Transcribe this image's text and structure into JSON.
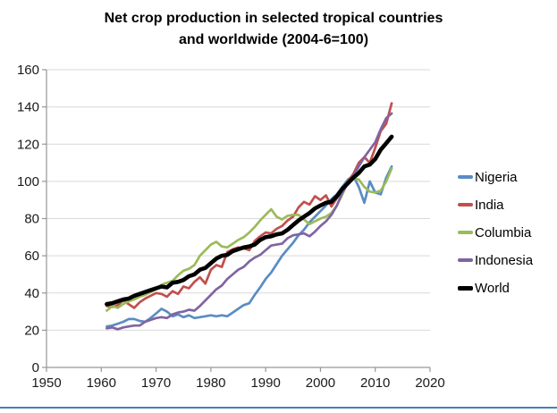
{
  "chart_data": {
    "type": "line",
    "title": "Net crop production in selected tropical countries and worldwide (2004-6=100)",
    "title_line1": "Net crop production in selected tropical countries",
    "title_line2": "and worldwide (2004-6=100)",
    "xlabel": "",
    "ylabel": "",
    "xlim": [
      1950,
      2020
    ],
    "ylim": [
      0,
      160
    ],
    "x_ticks": [
      1950,
      1960,
      1970,
      1980,
      1990,
      2000,
      2010,
      2020
    ],
    "y_ticks": [
      0,
      20,
      40,
      60,
      80,
      100,
      120,
      140,
      160
    ],
    "grid": "horizontal",
    "legend_position": "right",
    "axis_color": "#969696",
    "gridline_color": "#d9d9d9",
    "tick_label_color": "#1a1a1a",
    "x": [
      1961,
      1962,
      1963,
      1964,
      1965,
      1966,
      1967,
      1968,
      1969,
      1970,
      1971,
      1972,
      1973,
      1974,
      1975,
      1976,
      1977,
      1978,
      1979,
      1980,
      1981,
      1982,
      1983,
      1984,
      1985,
      1986,
      1987,
      1988,
      1989,
      1990,
      1991,
      1992,
      1993,
      1994,
      1995,
      1996,
      1997,
      1998,
      1999,
      2000,
      2001,
      2002,
      2003,
      2004,
      2005,
      2006,
      2007,
      2008,
      2009,
      2010,
      2011,
      2012,
      2013
    ],
    "series": [
      {
        "name": "Nigeria",
        "color": "#5a8cc3",
        "line_width": 2.7,
        "values": [
          22,
          22.5,
          23.5,
          24.5,
          26,
          26,
          25,
          24.5,
          26.5,
          29,
          31.5,
          30,
          27.5,
          28.5,
          27,
          28,
          26.5,
          27,
          27.5,
          28,
          27.5,
          28,
          27.5,
          29.5,
          31.5,
          33.5,
          34.5,
          39,
          43,
          47.5,
          51,
          55.5,
          60,
          63.5,
          67,
          71,
          74,
          78,
          81,
          84,
          87,
          90.5,
          93,
          97,
          101,
          103,
          97,
          88.5,
          100,
          94,
          93,
          102,
          108
        ]
      },
      {
        "name": "India",
        "color": "#c0504d",
        "line_width": 2.7,
        "values": [
          33,
          32.5,
          33.5,
          36,
          34,
          32,
          35,
          37,
          38.5,
          40,
          39.5,
          38,
          41,
          39.5,
          43.5,
          42.5,
          46,
          48.5,
          45,
          52.5,
          55,
          54,
          62,
          63.5,
          64.5,
          64,
          63,
          68,
          70.5,
          72.5,
          72,
          74.5,
          76,
          79,
          81,
          86,
          89,
          87.5,
          92,
          90,
          92.5,
          86.5,
          91,
          95.5,
          100,
          104,
          110,
          113,
          110,
          118,
          127,
          131,
          142
        ]
      },
      {
        "name": "Columbia",
        "color": "#9bbb59",
        "line_width": 2.7,
        "values": [
          30.5,
          33,
          32,
          34,
          35.5,
          36.5,
          38,
          39,
          40.5,
          42,
          44.5,
          45.5,
          46.5,
          49.5,
          52,
          53,
          55,
          60,
          63,
          66,
          67.5,
          65,
          64.5,
          66.5,
          68.5,
          70,
          72.5,
          75.5,
          79,
          82,
          85,
          81,
          79.5,
          81.5,
          82,
          82,
          79.5,
          77,
          78.5,
          80,
          81,
          83,
          87,
          93,
          99.5,
          101.5,
          101,
          97,
          94.5,
          94,
          95,
          100,
          107
        ]
      },
      {
        "name": "Indonesia",
        "color": "#8064a2",
        "line_width": 2.7,
        "values": [
          21,
          21.5,
          20.5,
          21.5,
          22,
          22.5,
          22.5,
          24.5,
          25.5,
          26.5,
          27,
          26.5,
          28.5,
          29.5,
          30,
          31,
          30.5,
          33,
          36,
          39,
          42,
          44,
          47.5,
          50,
          52.5,
          54,
          57,
          59,
          60.5,
          63,
          65.5,
          66,
          66.5,
          69.5,
          71,
          71.5,
          72,
          70.5,
          73,
          76,
          78.5,
          82,
          87,
          94,
          99,
          103,
          108,
          113,
          117,
          121,
          128,
          134,
          136.5
        ]
      },
      {
        "name": "World",
        "color": "#000000",
        "line_width": 4.6,
        "values": [
          34,
          34.5,
          35.5,
          36.5,
          37,
          38.5,
          39.5,
          40.5,
          41.5,
          42.5,
          43.5,
          43,
          45.5,
          46,
          47,
          49,
          50,
          52.5,
          53.5,
          56,
          58.5,
          60,
          60.5,
          62.5,
          63.5,
          64.5,
          65,
          66,
          68.5,
          70,
          70.5,
          71.5,
          72,
          74,
          76.5,
          79,
          81,
          83,
          85.5,
          87,
          88.5,
          89,
          92,
          96,
          99,
          102,
          104.5,
          108,
          109,
          112,
          117,
          120.5,
          124
        ]
      }
    ]
  },
  "footer": {
    "rule_color": "#4a7ebb"
  }
}
